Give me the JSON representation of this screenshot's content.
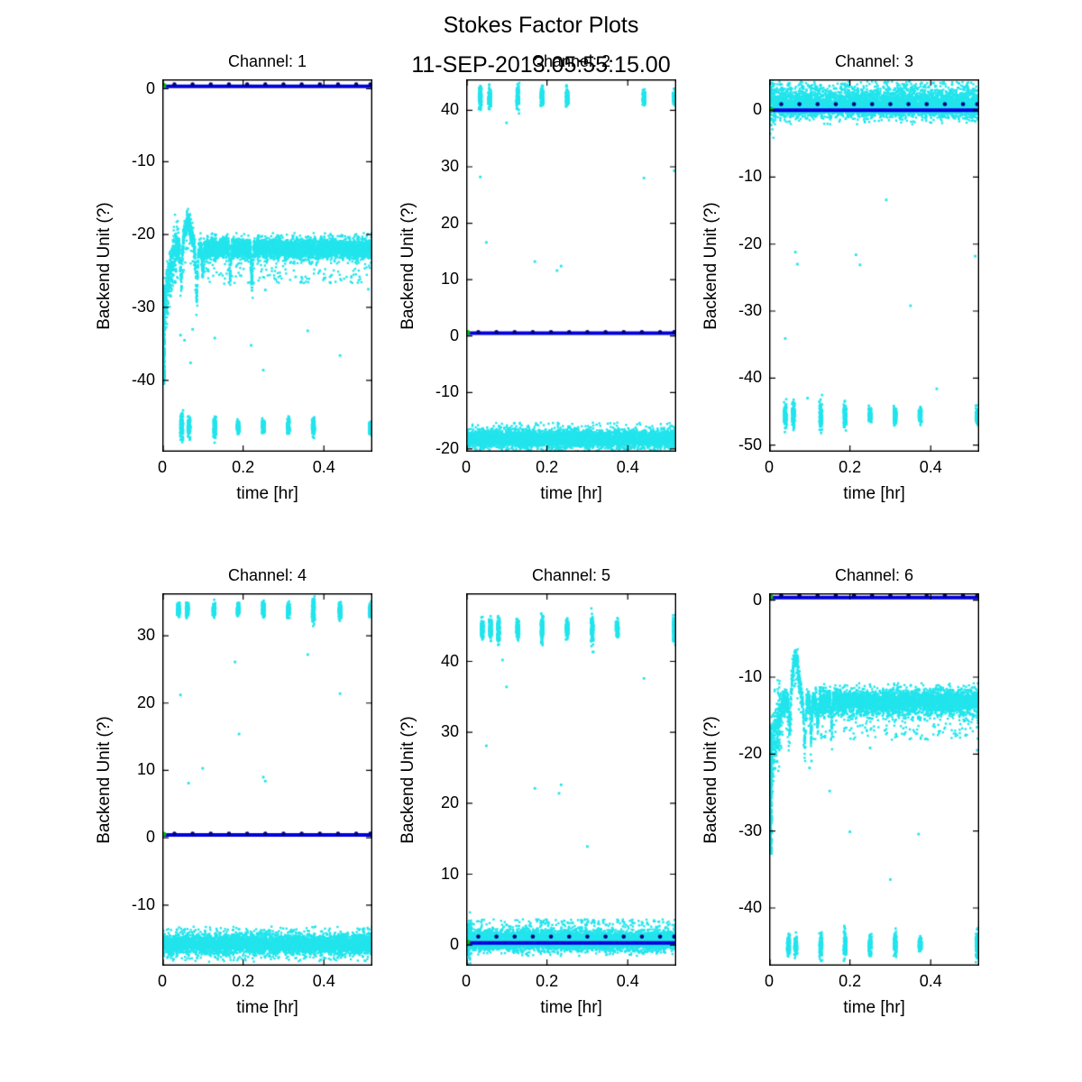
{
  "figure": {
    "title": "Stokes Factor Plots",
    "subtitle": "11-SEP-2013.05:55:15.00"
  },
  "colors": {
    "background": "#ffffff",
    "scatter": "#22E4EC",
    "fit_line": "#0000DC",
    "fit_markers": "#000080",
    "start_marker": "#00C800",
    "axis": "#000000"
  },
  "chart_data": [
    {
      "type": "scatter",
      "title": "Channel: 1",
      "xlabel": "time [hr]",
      "ylabel": "Backend Unit (?)",
      "xlim": [
        0,
        0.52
      ],
      "ylim": [
        -49.8,
        1.3
      ],
      "xticks": [
        0,
        0.2,
        0.4
      ],
      "yticks": [
        0,
        -10,
        -20,
        -30,
        -40
      ],
      "fit_line_y": 0.35,
      "marker_y": 0.6,
      "marker_x": [
        0.03,
        0.075,
        0.12,
        0.165,
        0.21,
        0.255,
        0.3,
        0.345,
        0.39,
        0.435,
        0.48,
        0.515
      ],
      "band": {
        "center": -21.9,
        "sigma": 0.7,
        "spike_prob": 0.05,
        "spike_depth": 4.0,
        "spike_dir": -1,
        "transient": {
          "rise_end": 0.03,
          "rise_start_y": -31.5,
          "peak_x": 0.063,
          "peak_amp": 3.6,
          "peak_w": 0.012,
          "early_noise_until": 0.04,
          "early_noise_mult": 2.2,
          "dips": [
            {
              "x": 0.047,
              "amp": 5.0,
              "w": 0.0028
            },
            {
              "x": 0.085,
              "amp": 6.5,
              "w": 0.003
            },
            {
              "x": 0.1,
              "amp": 3.2,
              "w": 0.0022
            },
            {
              "x": 0.168,
              "amp": 4.2,
              "w": 0.002
            },
            {
              "x": 0.222,
              "amp": 5.0,
              "w": 0.002
            }
          ]
        },
        "start_smear": {
          "x_max": 0.006,
          "y_lo": -40.5,
          "y_hi": -27.0,
          "n": 500
        }
      },
      "clusters": {
        "y": -46.4,
        "sigma": 0.55,
        "x": [
          0.048,
          0.066,
          0.13,
          0.188,
          0.25,
          0.312,
          0.374,
          0.515
        ]
      },
      "outliers": [
        [
          0.045,
          -33.8
        ],
        [
          0.055,
          -34.5
        ],
        [
          0.07,
          -37.6
        ],
        [
          0.075,
          -33.0
        ],
        [
          0.13,
          -34.2
        ],
        [
          0.165,
          -26.6
        ],
        [
          0.22,
          -35.2
        ],
        [
          0.25,
          -38.6
        ],
        [
          0.255,
          -27.6
        ],
        [
          0.36,
          -33.2
        ],
        [
          0.44,
          -36.6
        ],
        [
          0.51,
          -27.5
        ]
      ]
    },
    {
      "type": "scatter",
      "title": "Channel: 2",
      "xlabel": "time [hr]",
      "ylabel": "Backend Unit (?)",
      "xlim": [
        0,
        0.52
      ],
      "ylim": [
        -20.5,
        45.5
      ],
      "xticks": [
        0,
        0.2,
        0.4
      ],
      "yticks": [
        40,
        30,
        20,
        10,
        0,
        -10,
        -20
      ],
      "fit_line_y": 0.5,
      "marker_y": 0.7,
      "marker_x": [
        0.03,
        0.075,
        0.12,
        0.165,
        0.21,
        0.255,
        0.3,
        0.345,
        0.39,
        0.435,
        0.48,
        0.515
      ],
      "band": {
        "center": -18.2,
        "sigma": 0.75,
        "spike_prob": 0.05,
        "spike_depth": 2.0,
        "spike_dir": 0,
        "transient": null,
        "start_smear": null
      },
      "clusters": {
        "y": 42.3,
        "sigma": 0.6,
        "x": [
          0.035,
          0.058,
          0.128,
          0.188,
          0.25,
          0.44,
          0.515
        ]
      },
      "outliers": [
        [
          0.035,
          28.2
        ],
        [
          0.05,
          16.6
        ],
        [
          0.1,
          37.8
        ],
        [
          0.17,
          13.2
        ],
        [
          0.225,
          11.6
        ],
        [
          0.235,
          12.4
        ],
        [
          0.44,
          28.0
        ],
        [
          0.515,
          29.3
        ]
      ]
    },
    {
      "type": "scatter",
      "title": "Channel: 3",
      "xlabel": "time [hr]",
      "ylabel": "Backend Unit (?)",
      "xlim": [
        0,
        0.52
      ],
      "ylim": [
        -51,
        4.6
      ],
      "xticks": [
        0,
        0.2,
        0.4
      ],
      "yticks": [
        0,
        -10,
        -20,
        -30,
        -40,
        -50
      ],
      "fit_line_y": 0.0,
      "marker_y": 0.9,
      "marker_x": [
        0.03,
        0.075,
        0.12,
        0.165,
        0.21,
        0.255,
        0.3,
        0.345,
        0.39,
        0.435,
        0.48,
        0.515
      ],
      "band": {
        "center": 0.9,
        "sigma": 1.0,
        "spike_prob": 0.06,
        "spike_depth": 2.2,
        "spike_dir": 1,
        "early": {
          "until": 0.012,
          "mult": 1.8
        },
        "transient": null,
        "start_smear": null
      },
      "clusters": {
        "y": -45.6,
        "sigma": 0.7,
        "x": [
          0.04,
          0.06,
          0.128,
          0.188,
          0.25,
          0.312,
          0.374,
          0.515
        ]
      },
      "outliers": [
        [
          0.04,
          -34.1
        ],
        [
          0.065,
          -21.2
        ],
        [
          0.07,
          -23.0
        ],
        [
          0.095,
          -43.0
        ],
        [
          0.215,
          -21.6
        ],
        [
          0.225,
          -23.1
        ],
        [
          0.29,
          -13.4
        ],
        [
          0.35,
          -29.2
        ],
        [
          0.415,
          -41.6
        ],
        [
          0.51,
          -21.8
        ]
      ]
    },
    {
      "type": "scatter",
      "title": "Channel: 4",
      "xlabel": "time [hr]",
      "ylabel": "Backend Unit (?)",
      "xlim": [
        0,
        0.52
      ],
      "ylim": [
        -19,
        36.3
      ],
      "xticks": [
        0,
        0.2,
        0.4
      ],
      "yticks": [
        30,
        20,
        10,
        0,
        -10
      ],
      "fit_line_y": 0.4,
      "marker_y": 0.6,
      "marker_x": [
        0.03,
        0.075,
        0.12,
        0.165,
        0.21,
        0.255,
        0.3,
        0.345,
        0.39,
        0.435,
        0.48,
        0.515
      ],
      "band": {
        "center": -15.8,
        "sigma": 0.7,
        "spike_prob": 0.05,
        "spike_depth": 1.8,
        "spike_dir": 0,
        "transient": null,
        "start_smear": null
      },
      "clusters": {
        "y": 33.8,
        "sigma": 0.6,
        "x": [
          0.04,
          0.062,
          0.128,
          0.188,
          0.25,
          0.312,
          0.374,
          0.44,
          0.515
        ]
      },
      "outliers": [
        [
          0.045,
          21.2
        ],
        [
          0.065,
          8.1
        ],
        [
          0.1,
          10.3
        ],
        [
          0.18,
          26.1
        ],
        [
          0.19,
          15.4
        ],
        [
          0.25,
          9.0
        ],
        [
          0.255,
          8.4
        ],
        [
          0.36,
          27.2
        ],
        [
          0.44,
          21.4
        ]
      ]
    },
    {
      "type": "scatter",
      "title": "Channel: 5",
      "xlabel": "time [hr]",
      "ylabel": "Backend Unit (?)",
      "xlim": [
        0,
        0.52
      ],
      "ylim": [
        -2.9,
        49.6
      ],
      "xticks": [
        0,
        0.2,
        0.4
      ],
      "yticks": [
        40,
        30,
        20,
        10,
        0
      ],
      "fit_line_y": 0.3,
      "marker_y": 1.2,
      "marker_x": [
        0.03,
        0.075,
        0.12,
        0.165,
        0.21,
        0.255,
        0.3,
        0.345,
        0.39,
        0.435,
        0.48,
        0.515
      ],
      "band": {
        "center": 0.6,
        "sigma": 0.7,
        "spike_prob": 0.06,
        "spike_depth": 2.2,
        "spike_dir": 1,
        "early": {
          "until": 0.012,
          "mult": 2.0
        },
        "transient": null,
        "start_smear": null
      },
      "clusters": {
        "y": 44.6,
        "sigma": 0.8,
        "x": [
          0.04,
          0.06,
          0.08,
          0.128,
          0.188,
          0.25,
          0.312,
          0.374,
          0.515
        ]
      },
      "outliers": [
        [
          0.05,
          28.1
        ],
        [
          0.09,
          40.2
        ],
        [
          0.1,
          36.4
        ],
        [
          0.17,
          22.1
        ],
        [
          0.23,
          21.4
        ],
        [
          0.235,
          22.6
        ],
        [
          0.3,
          13.9
        ],
        [
          0.44,
          37.6
        ]
      ]
    },
    {
      "type": "scatter",
      "title": "Channel: 6",
      "xlabel": "time [hr]",
      "ylabel": "Backend Unit (?)",
      "xlim": [
        0,
        0.52
      ],
      "ylim": [
        -47.5,
        0.9
      ],
      "xticks": [
        0,
        0.2,
        0.4
      ],
      "yticks": [
        0,
        -10,
        -20,
        -30,
        -40
      ],
      "fit_line_y": 0.35,
      "marker_y": 0.6,
      "marker_x": [
        0.03,
        0.075,
        0.12,
        0.165,
        0.21,
        0.255,
        0.3,
        0.345,
        0.39,
        0.435,
        0.48,
        0.515
      ],
      "band": {
        "center": -13.2,
        "sigma": 0.8,
        "spike_prob": 0.05,
        "spike_depth": 4.0,
        "spike_dir": -1,
        "transient": {
          "rise_end": 0.035,
          "rise_start_y": -21.0,
          "peak_x": 0.066,
          "peak_amp": 5.6,
          "peak_w": 0.011,
          "early_noise_until": 0.03,
          "early_noise_mult": 2.6,
          "dips": [
            {
              "x": 0.051,
              "amp": 4.2,
              "w": 0.0028
            },
            {
              "x": 0.088,
              "amp": 5.2,
              "w": 0.003
            },
            {
              "x": 0.104,
              "amp": 4.4,
              "w": 0.0024
            },
            {
              "x": 0.12,
              "amp": 3.2,
              "w": 0.002
            },
            {
              "x": 0.155,
              "amp": 2.5,
              "w": 0.002
            }
          ]
        },
        "start_smear": {
          "x_max": 0.007,
          "y_lo": -33.0,
          "y_hi": -16.5,
          "n": 420
        }
      },
      "clusters": {
        "y": -44.8,
        "sigma": 0.55,
        "x": [
          0.048,
          0.066,
          0.128,
          0.188,
          0.25,
          0.312,
          0.374,
          0.515
        ]
      },
      "outliers": [
        [
          0.1,
          -21.8
        ],
        [
          0.105,
          -20.9
        ],
        [
          0.15,
          -24.8
        ],
        [
          0.2,
          -30.1
        ],
        [
          0.25,
          -19.2
        ],
        [
          0.3,
          -36.3
        ],
        [
          0.37,
          -30.4
        ],
        [
          0.515,
          -19.5
        ]
      ]
    }
  ]
}
